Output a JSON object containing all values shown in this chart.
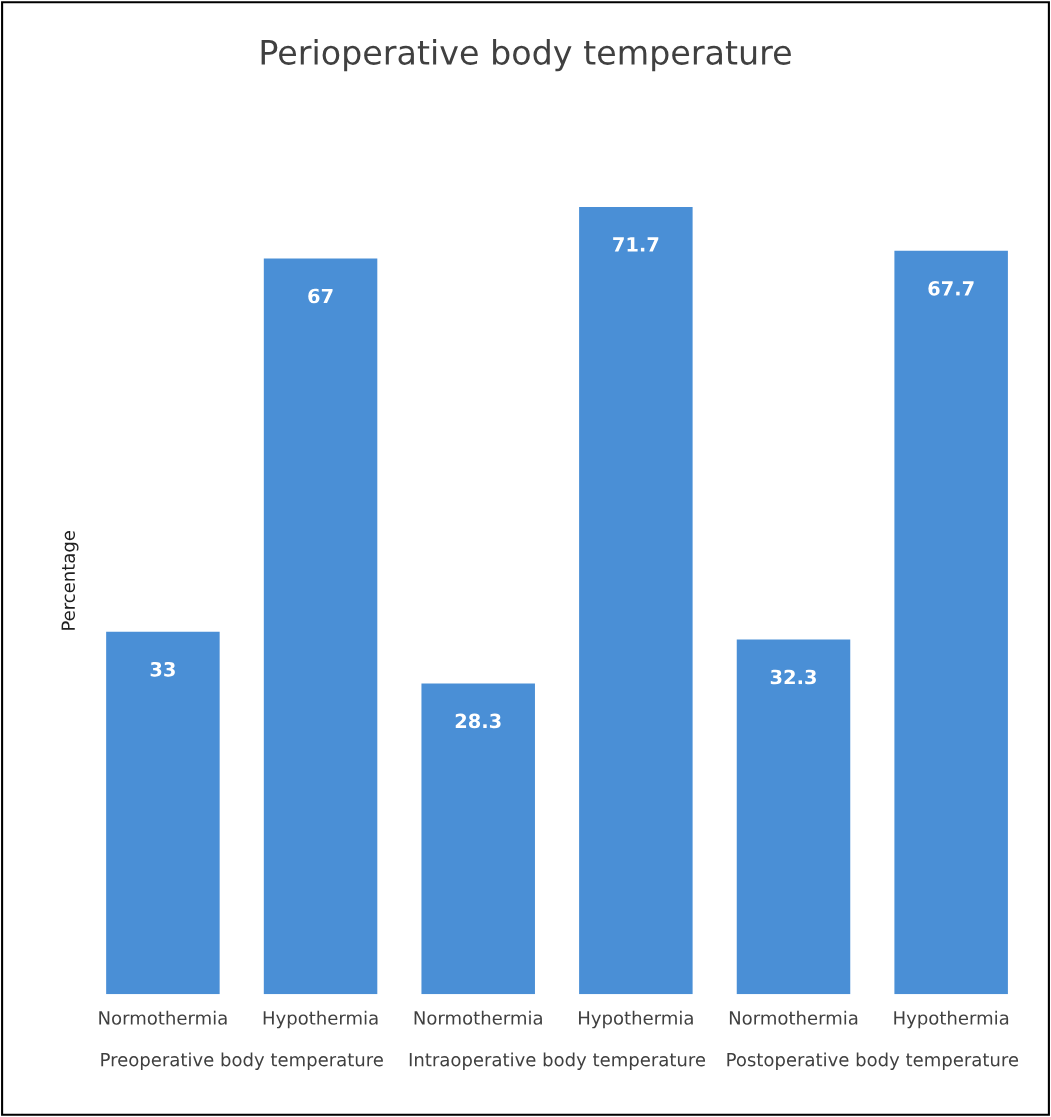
{
  "chart_data": {
    "type": "bar",
    "title": "Perioperative body temperature",
    "ylabel": "Percentage",
    "categories": [
      "Normothermia",
      "Hypothermia",
      "Normothermia",
      "Hypothermia",
      "Normothermia",
      "Hypothermia"
    ],
    "values": [
      33,
      67,
      28.3,
      71.7,
      32.3,
      67.7
    ],
    "color": "#4a8fd6",
    "data_labels": true,
    "grid": false,
    "legend": false,
    "annotations": [
      "Preoperative body temperature",
      "Intraoperative body temperature",
      "Postoperative body temperature"
    ]
  }
}
